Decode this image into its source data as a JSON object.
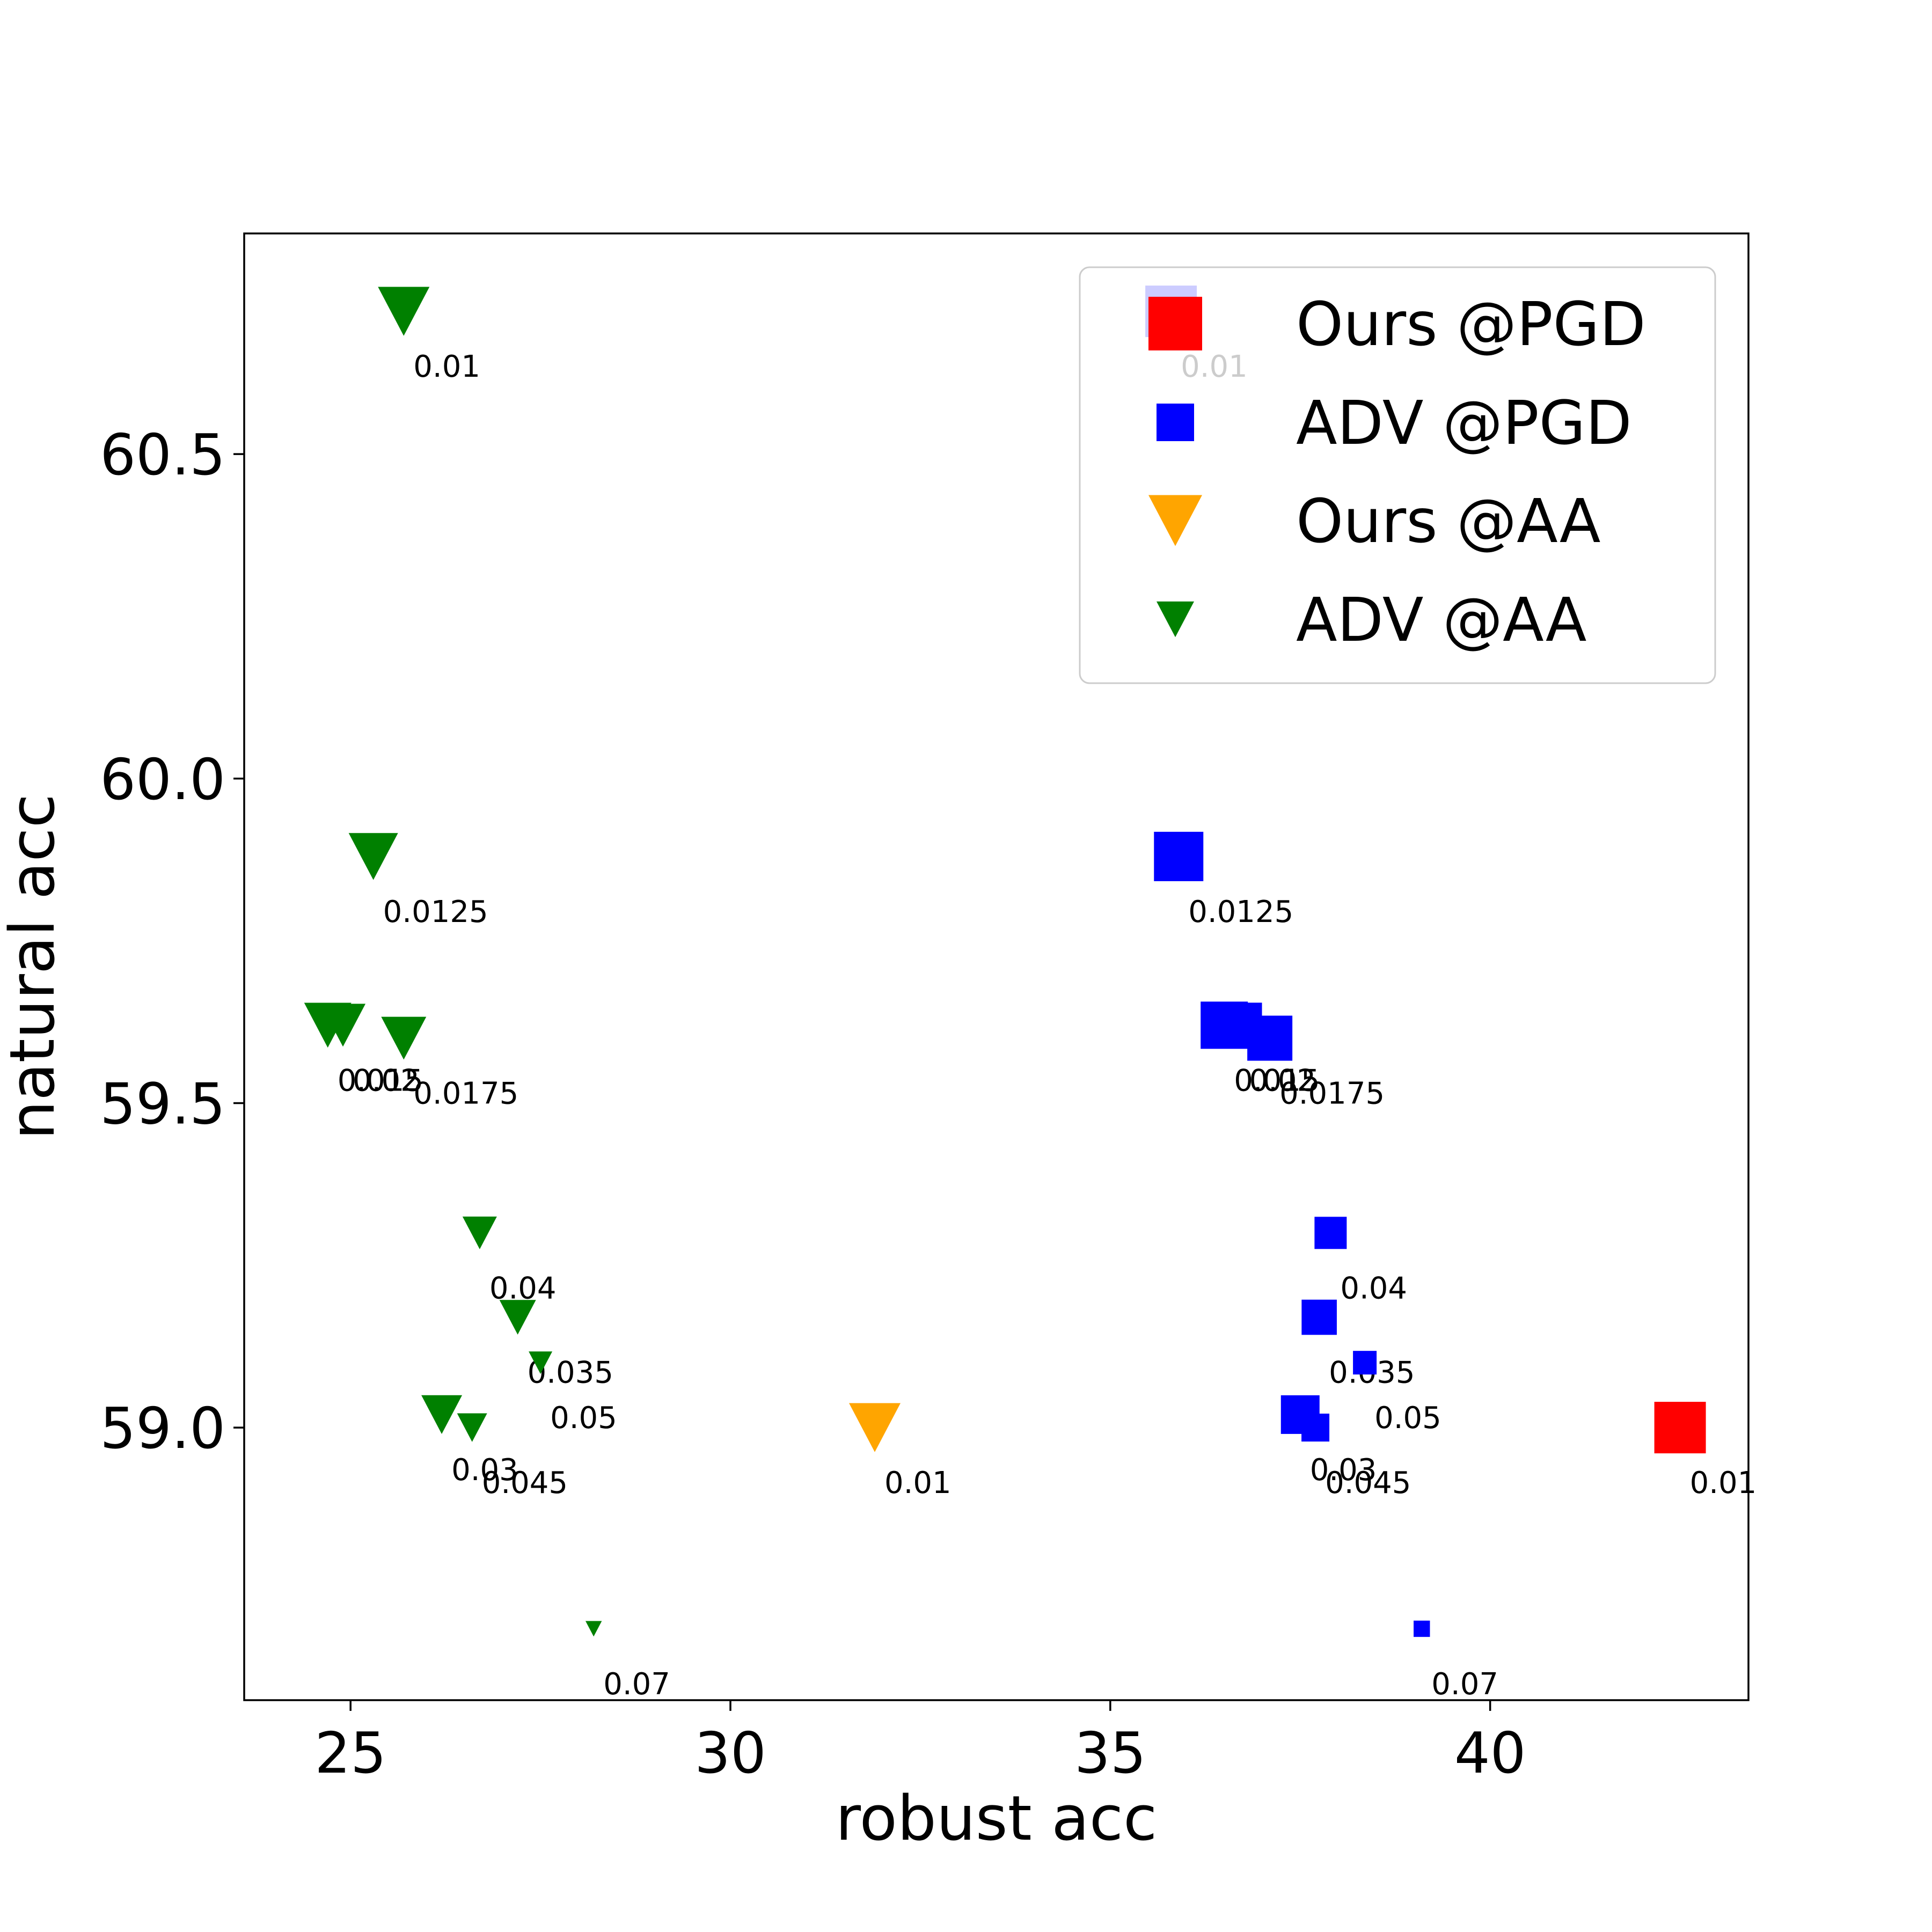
{
  "chart_data": {
    "type": "scatter",
    "xlabel": "robust acc",
    "ylabel": "natural acc",
    "xlim": [
      23.6,
      43.4
    ],
    "ylim": [
      58.58,
      60.84
    ],
    "xticks": [
      25,
      30,
      35,
      40
    ],
    "yticks": [
      59.0,
      59.5,
      60.0,
      60.5
    ],
    "xtick_labels": [
      "25",
      "30",
      "35",
      "40"
    ],
    "ytick_labels": [
      "59.0",
      "59.5",
      "60.0",
      "60.5"
    ],
    "grid": false,
    "legend_position": "top-right",
    "series": [
      {
        "name": "Ours @PGD",
        "marker": "square",
        "color": "#ff0000",
        "points": [
          {
            "x": 42.5,
            "y": 59.0,
            "label": "0.01",
            "size": 1.0
          }
        ]
      },
      {
        "name": "ADV @PGD",
        "marker": "square",
        "color": "#0000ff",
        "points": [
          {
            "x": 35.8,
            "y": 60.72,
            "label": "0.01",
            "size": 1.0
          },
          {
            "x": 35.9,
            "y": 59.88,
            "label": "0.0125",
            "size": 0.95
          },
          {
            "x": 36.5,
            "y": 59.62,
            "label": "0.015",
            "size": 0.9
          },
          {
            "x": 36.7,
            "y": 59.62,
            "label": "0.02",
            "size": 0.85
          },
          {
            "x": 37.1,
            "y": 59.6,
            "label": "0.0175",
            "size": 0.85
          },
          {
            "x": 37.9,
            "y": 59.3,
            "label": "0.04",
            "size": 0.55
          },
          {
            "x": 37.75,
            "y": 59.17,
            "label": "0.035",
            "size": 0.62
          },
          {
            "x": 38.35,
            "y": 59.1,
            "label": "0.05",
            "size": 0.35
          },
          {
            "x": 37.5,
            "y": 59.02,
            "label": "0.03",
            "size": 0.7
          },
          {
            "x": 37.7,
            "y": 59.0,
            "label": "0.045",
            "size": 0.45
          },
          {
            "x": 39.1,
            "y": 58.69,
            "label": "0.07",
            "size": 0.18
          }
        ]
      },
      {
        "name": "Ours @AA",
        "marker": "triangle-down",
        "color": "#ffa500",
        "points": [
          {
            "x": 31.9,
            "y": 59.0,
            "label": "0.01",
            "size": 1.0
          }
        ]
      },
      {
        "name": "ADV @AA",
        "marker": "triangle-down",
        "color": "#008000",
        "points": [
          {
            "x": 25.7,
            "y": 60.72,
            "label": "0.01",
            "size": 1.0
          },
          {
            "x": 25.3,
            "y": 59.88,
            "label": "0.0125",
            "size": 0.95
          },
          {
            "x": 24.7,
            "y": 59.62,
            "label": "0.015",
            "size": 0.9
          },
          {
            "x": 24.9,
            "y": 59.62,
            "label": "0.02",
            "size": 0.85
          },
          {
            "x": 25.7,
            "y": 59.6,
            "label": "0.0175",
            "size": 0.85
          },
          {
            "x": 26.7,
            "y": 59.3,
            "label": "0.04",
            "size": 0.6
          },
          {
            "x": 27.2,
            "y": 59.17,
            "label": "0.035",
            "size": 0.65
          },
          {
            "x": 27.5,
            "y": 59.1,
            "label": "0.05",
            "size": 0.35
          },
          {
            "x": 26.2,
            "y": 59.02,
            "label": "0.03",
            "size": 0.75
          },
          {
            "x": 26.6,
            "y": 59.0,
            "label": "0.045",
            "size": 0.5
          },
          {
            "x": 28.2,
            "y": 58.69,
            "label": "0.07",
            "size": 0.18
          }
        ]
      }
    ]
  }
}
